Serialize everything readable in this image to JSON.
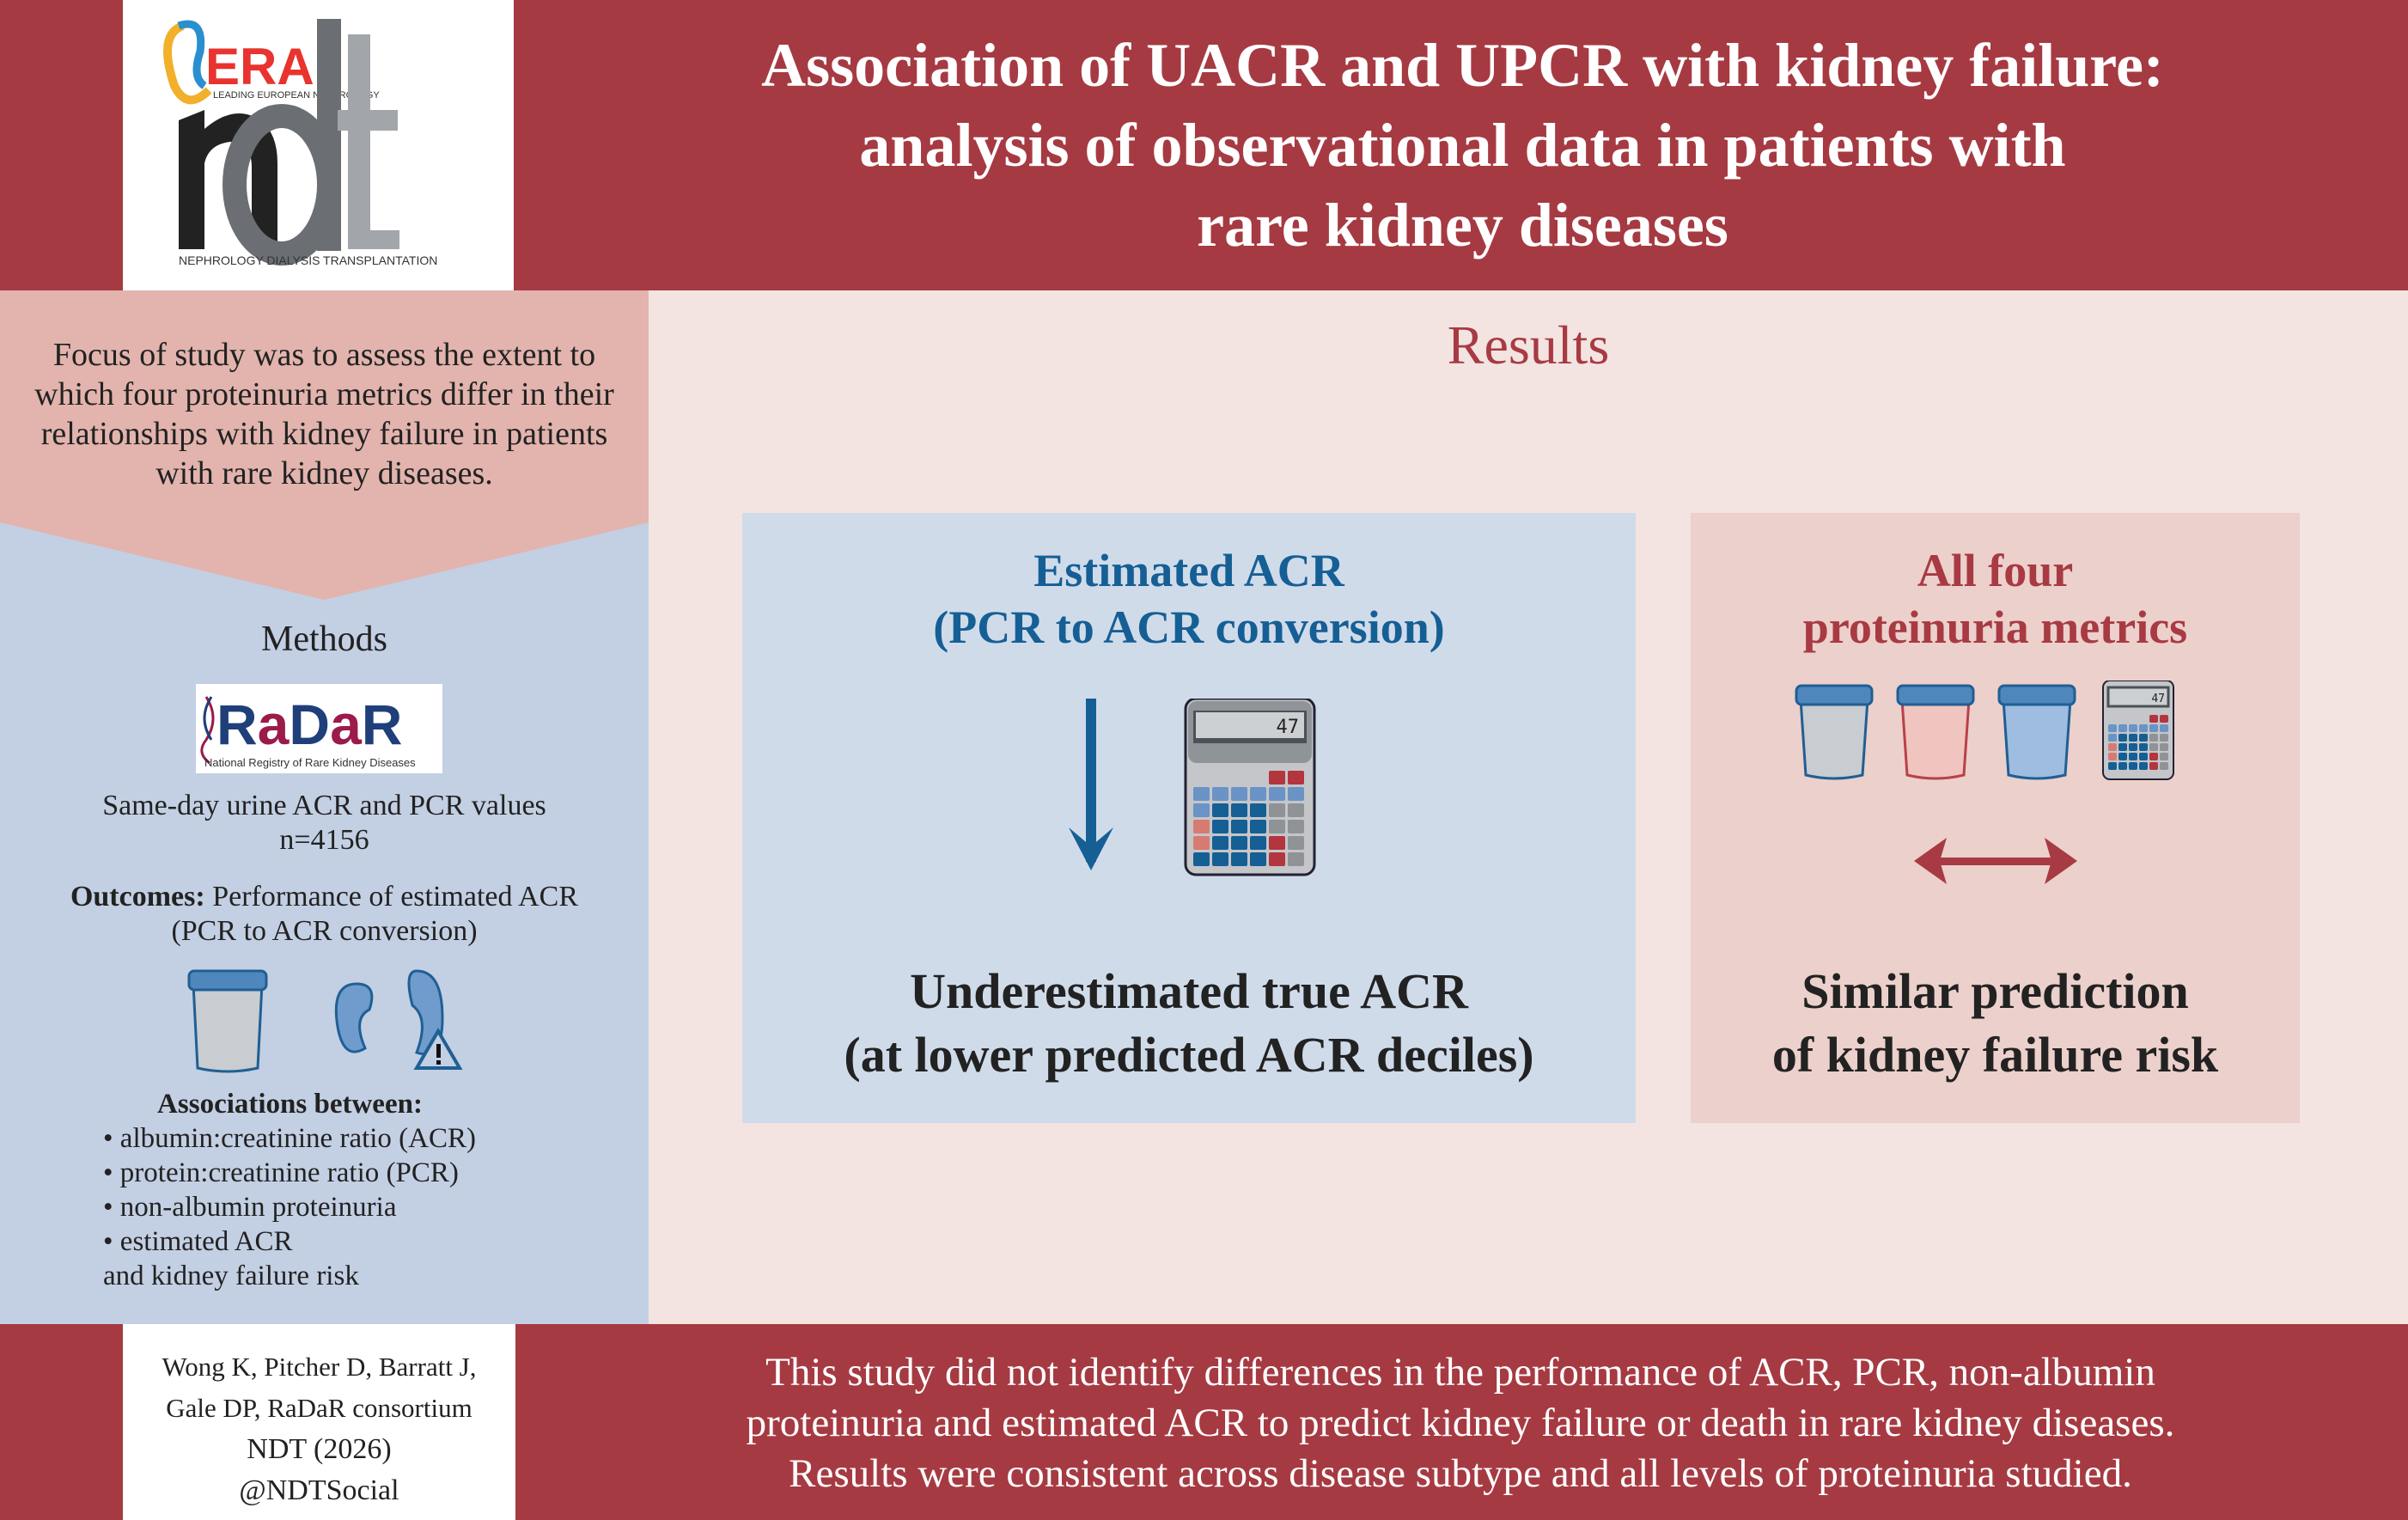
{
  "header": {
    "title_lines": [
      "Association of UACR and UPCR with kidney failure:",
      "analysis of observational data in patients with",
      "rare kidney diseases"
    ],
    "logo": {
      "era": "ERA",
      "era_tagline": "LEADING EUROPEAN NEPHROLOGY",
      "ndt": "ndt",
      "ndt_tagline": "NEPHROLOGY DIALYSIS TRANSPLANTATION"
    }
  },
  "left": {
    "focus": "Focus of study was to assess the extent to which four proteinuria metrics differ in their relationships with kidney failure in patients with rare kidney diseases.",
    "methods_title": "Methods",
    "radar": {
      "name": "RaDaR",
      "subtitle": "National Registry of Rare Kidney Diseases"
    },
    "sample_line1": "Same-day urine ACR and PCR values",
    "sample_line2": "n=4156",
    "outcomes_label": "Outcomes:",
    "outcomes_text": " Performance of estimated ACR",
    "outcomes_line2": "(PCR to ACR conversion)",
    "assoc_title": "Associations between:",
    "assoc_items": [
      "• albumin:creatinine ratio (ACR)",
      "• protein:creatinine ratio (PCR)",
      "• non-albumin proteinuria",
      "• estimated ACR"
    ],
    "assoc_tail": "and kidney failure risk"
  },
  "main": {
    "title": "Results",
    "blue_box": {
      "heading1": "Estimated ACR",
      "heading2": "(PCR to ACR conversion)",
      "calc_display": "47",
      "finding1": "Underestimated true ACR",
      "finding2": "(at lower predicted ACR deciles)"
    },
    "pink_box": {
      "heading1": "All four",
      "heading2": "proteinuria metrics",
      "calc_display": "47",
      "finding1": "Similar prediction",
      "finding2": "of kidney failure risk"
    }
  },
  "footer": {
    "authors1": "Wong K, Pitcher D, Barratt J,",
    "authors2": "Gale DP, RaDaR consortium",
    "journal": "NDT (2026)",
    "social": "@NDTSocial",
    "conclusion": [
      "This study did not identify differences in the performance of ACR, PCR, non-albumin",
      "proteinuria and estimated ACR to predict kidney failure or death in rare kidney diseases.",
      "Results were consistent across disease subtype and all levels of proteinuria studied."
    ]
  },
  "colors": {
    "brand_red": "#a63a42",
    "blue": "#155f95",
    "panel_blue": "#c3cfe3",
    "panel_pink": "#e2b4ad"
  }
}
